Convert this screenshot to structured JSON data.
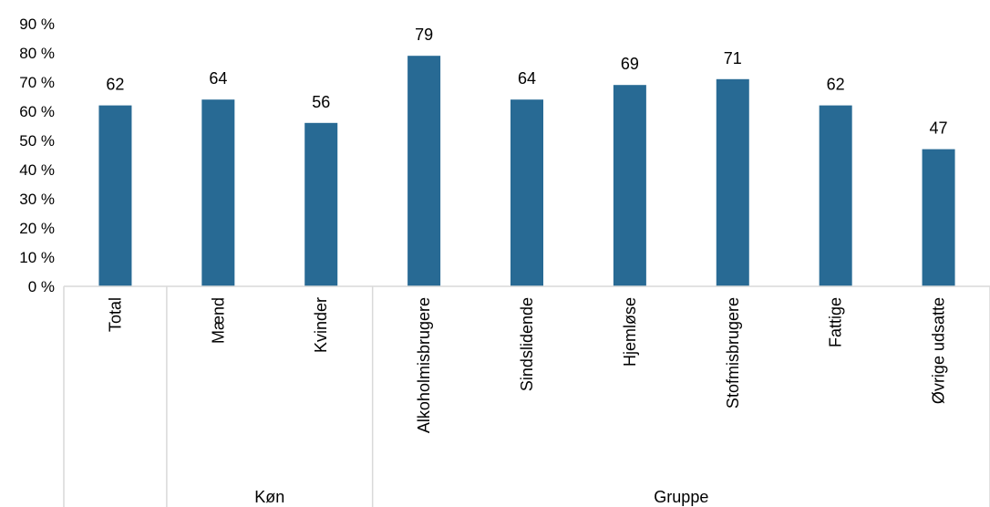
{
  "chart_data": {
    "type": "bar",
    "categories": [
      "Total",
      "Mænd",
      "Kvinder",
      "Alkoholmisbrugere",
      "Sindslidende",
      "Hjemløse",
      "Stofmisbrugere",
      "Fattige",
      "Øvrige udsatte"
    ],
    "values": [
      62,
      64,
      56,
      79,
      64,
      69,
      71,
      62,
      47
    ],
    "data_labels": [
      "62",
      "64",
      "56",
      "79",
      "64",
      "69",
      "71",
      "62",
      "47"
    ],
    "groups": [
      {
        "label": "",
        "start": 0,
        "end": 0
      },
      {
        "label": "Køn",
        "start": 1,
        "end": 2
      },
      {
        "label": "Gruppe",
        "start": 3,
        "end": 8
      }
    ],
    "ylim": [
      0,
      90
    ],
    "y_ticks": [
      "0 %",
      "10 %",
      "20 %",
      "30 %",
      "40 %",
      "50 %",
      "60 %",
      "70 %",
      "80 %",
      "90 %"
    ],
    "y_tick_values": [
      0,
      10,
      20,
      30,
      40,
      50,
      60,
      70,
      80,
      90
    ],
    "grid": false,
    "bar_color": "#286a94",
    "axis_color": "#d9d9d9",
    "title": "",
    "xlabel": "",
    "ylabel": ""
  }
}
